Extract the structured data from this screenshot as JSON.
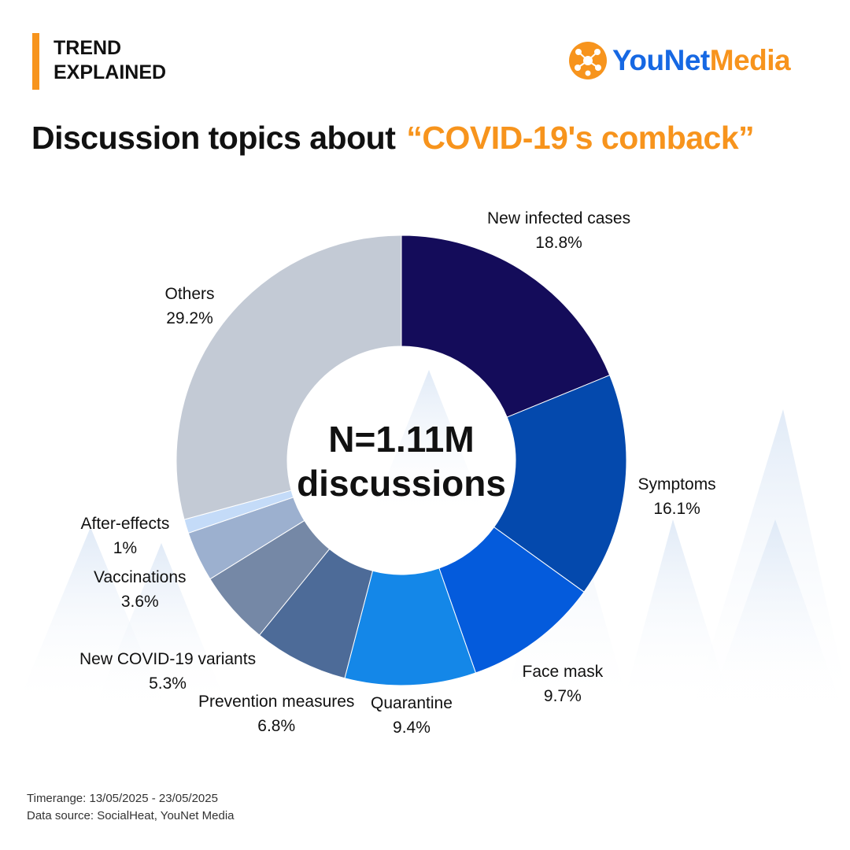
{
  "header": {
    "line1": "TREND",
    "line2": "EXPLAINED"
  },
  "logo": {
    "part1": "YouNet",
    "part2": "Media",
    "icon": "network-dots-icon"
  },
  "title": {
    "main": "Discussion topics about",
    "highlight": "“COVID-19's comback”"
  },
  "colors": {
    "accent": "#f7941d",
    "brand_blue": "#1668e3"
  },
  "chart_data": {
    "type": "donut",
    "center_label": [
      "N=1.11M",
      "discussions"
    ],
    "categories": [
      "New infected cases",
      "Symptoms",
      "Face mask",
      "Quarantine",
      "Prevention measures",
      "New COVID-19 variants",
      "Vaccinations",
      "After-effects",
      "Others"
    ],
    "values": [
      18.8,
      16.1,
      9.7,
      9.4,
      6.8,
      5.3,
      3.6,
      1,
      29.2
    ],
    "value_labels": [
      "18.8%",
      "16.1%",
      "9.7%",
      "9.4%",
      "6.8%",
      "5.3%",
      "3.6%",
      "1%",
      "29.2%"
    ],
    "colors": [
      "#140c5a",
      "#0449ad",
      "#045bdc",
      "#1487e8",
      "#4d6b98",
      "#7588a6",
      "#9cb0cf",
      "#c4dbf8",
      "#c3cad5"
    ]
  },
  "footer": {
    "timerange": "Timerange: 13/05/2025 - 23/05/2025",
    "source": "Data source: SocialHeat, YouNet Media"
  }
}
